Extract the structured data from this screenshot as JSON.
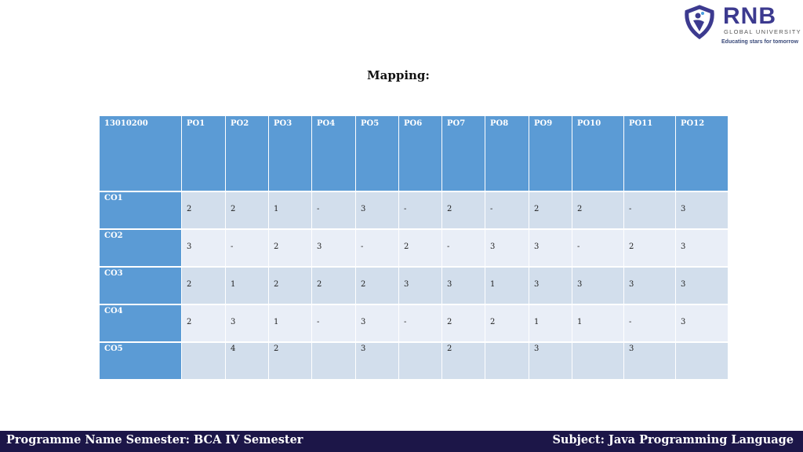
{
  "logo": {
    "name": "RNB",
    "subtitle": "GLOBAL UNIVERSITY",
    "tagline": "Educating stars for tomorrow",
    "brand_color": "#3c3a8f"
  },
  "title": "Mapping:",
  "table": {
    "headers": [
      "13010200",
      "PO1",
      "PO2",
      "PO3",
      "PO4",
      "PO5",
      "PO6",
      "PO7",
      "PO8",
      "PO9",
      "PO10",
      "PO11",
      "PO12"
    ],
    "rows": [
      {
        "label": "CO1",
        "values": [
          "2",
          "2",
          "1",
          "-",
          "3",
          "-",
          "2",
          "-",
          "2",
          "2",
          "-",
          "3"
        ]
      },
      {
        "label": "CO2",
        "values": [
          "3",
          "-",
          "2",
          "3",
          "-",
          "2",
          "-",
          "3",
          "3",
          "-",
          "2",
          "3"
        ]
      },
      {
        "label": "CO3",
        "values": [
          "2",
          "1",
          "2",
          "2",
          "2",
          "3",
          "3",
          "1",
          "3",
          "3",
          "3",
          "3"
        ]
      },
      {
        "label": "CO4",
        "values": [
          "2",
          "3",
          "1",
          "-",
          "3",
          "-",
          "2",
          "2",
          "1",
          "1",
          "-",
          "3"
        ]
      },
      {
        "label": "CO5",
        "values": [
          "",
          "4",
          "2",
          "",
          "3",
          "",
          "2",
          "",
          "3",
          "",
          "3",
          ""
        ]
      }
    ]
  },
  "footer": {
    "left": "Programme Name Semester: BCA IV Semester",
    "right": "Subject: Java Programming Language",
    "color": "#1c1648"
  },
  "colors": {
    "header": "#5b9bd5",
    "row_dark": "#d2deec",
    "row_light": "#e9eef7"
  }
}
